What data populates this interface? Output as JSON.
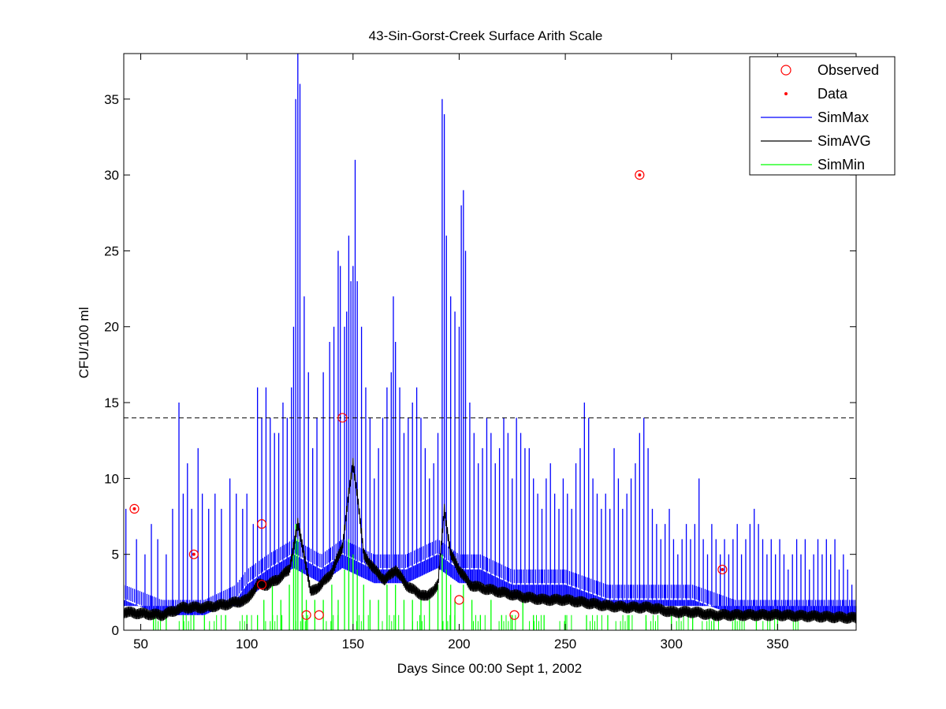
{
  "chart_data": {
    "type": "line",
    "title": "43-Sin-Gorst-Creek Surface Arith Scale",
    "xlabel": "Days Since 00:00 Sept 1, 2002",
    "ylabel": "CFU/100 ml",
    "xlim": [
      42,
      387
    ],
    "ylim": [
      0,
      38
    ],
    "xticks": [
      50,
      100,
      150,
      200,
      250,
      300,
      350
    ],
    "yticks": [
      0,
      5,
      10,
      15,
      20,
      25,
      30,
      35
    ],
    "grid": false,
    "legend_position": "top-right",
    "threshold": {
      "y": 14,
      "style": "dashed",
      "color": "#000000"
    },
    "observed": {
      "name": "Observed",
      "color": "#ff0000",
      "x": [
        47,
        75,
        107,
        107,
        128,
        134,
        145,
        200,
        226,
        285,
        324
      ],
      "y": [
        8,
        5,
        7,
        3,
        1,
        1,
        14,
        2,
        1,
        30,
        4
      ]
    },
    "data_points": {
      "name": "Data",
      "color": "#ff0000",
      "x": [
        47,
        75,
        285,
        324
      ],
      "y": [
        8,
        5,
        30,
        4
      ]
    },
    "series": [
      {
        "name": "SimMax",
        "color": "#0000ff",
        "baseline": [
          [
            42,
            3
          ],
          [
            60,
            2
          ],
          [
            80,
            2
          ],
          [
            95,
            3
          ],
          [
            100,
            4
          ],
          [
            110,
            5
          ],
          [
            122,
            6
          ],
          [
            135,
            5
          ],
          [
            145,
            6
          ],
          [
            160,
            5
          ],
          [
            175,
            5
          ],
          [
            190,
            6
          ],
          [
            200,
            5
          ],
          [
            210,
            5
          ],
          [
            225,
            4
          ],
          [
            250,
            4
          ],
          [
            270,
            3
          ],
          [
            290,
            3
          ],
          [
            310,
            3
          ],
          [
            330,
            2
          ],
          [
            360,
            2
          ],
          [
            387,
            2
          ]
        ],
        "peaks": [
          [
            43,
            8
          ],
          [
            48,
            6
          ],
          [
            52,
            5
          ],
          [
            55,
            7
          ],
          [
            58,
            6
          ],
          [
            62,
            5
          ],
          [
            65,
            8
          ],
          [
            68,
            15
          ],
          [
            70,
            9
          ],
          [
            72,
            11
          ],
          [
            74,
            8
          ],
          [
            77,
            12
          ],
          [
            79,
            9
          ],
          [
            82,
            8
          ],
          [
            85,
            9
          ],
          [
            88,
            8
          ],
          [
            92,
            10
          ],
          [
            95,
            9
          ],
          [
            98,
            8
          ],
          [
            100,
            9
          ],
          [
            103,
            7
          ],
          [
            105,
            16
          ],
          [
            107,
            14
          ],
          [
            109,
            16
          ],
          [
            111,
            14
          ],
          [
            113,
            13
          ],
          [
            115,
            13
          ],
          [
            117,
            15
          ],
          [
            119,
            14
          ],
          [
            121,
            16
          ],
          [
            122,
            20
          ],
          [
            123,
            35
          ],
          [
            124,
            38
          ],
          [
            125,
            36
          ],
          [
            127,
            22
          ],
          [
            129,
            17
          ],
          [
            131,
            12
          ],
          [
            133,
            14
          ],
          [
            136,
            17
          ],
          [
            139,
            19
          ],
          [
            141,
            20
          ],
          [
            143,
            25
          ],
          [
            144,
            24
          ],
          [
            146,
            20
          ],
          [
            147,
            21
          ],
          [
            148,
            26
          ],
          [
            149,
            23
          ],
          [
            150,
            24
          ],
          [
            151,
            31
          ],
          [
            152,
            23
          ],
          [
            154,
            20
          ],
          [
            156,
            16
          ],
          [
            158,
            14
          ],
          [
            160,
            10
          ],
          [
            162,
            12
          ],
          [
            164,
            14
          ],
          [
            166,
            16
          ],
          [
            168,
            17
          ],
          [
            169,
            22
          ],
          [
            170,
            19
          ],
          [
            172,
            16
          ],
          [
            174,
            13
          ],
          [
            176,
            14
          ],
          [
            178,
            15
          ],
          [
            180,
            16
          ],
          [
            182,
            14
          ],
          [
            184,
            12
          ],
          [
            186,
            10
          ],
          [
            188,
            11
          ],
          [
            190,
            13
          ],
          [
            192,
            35
          ],
          [
            193,
            34
          ],
          [
            194,
            26
          ],
          [
            196,
            22
          ],
          [
            198,
            21
          ],
          [
            200,
            20
          ],
          [
            201,
            28
          ],
          [
            202,
            29
          ],
          [
            203,
            25
          ],
          [
            205,
            15
          ],
          [
            207,
            13
          ],
          [
            209,
            11
          ],
          [
            211,
            12
          ],
          [
            213,
            14
          ],
          [
            215,
            13
          ],
          [
            217,
            11
          ],
          [
            219,
            12
          ],
          [
            221,
            14
          ],
          [
            223,
            13
          ],
          [
            225,
            10
          ],
          [
            227,
            14
          ],
          [
            229,
            13
          ],
          [
            231,
            12
          ],
          [
            233,
            12
          ],
          [
            235,
            10
          ],
          [
            237,
            9
          ],
          [
            239,
            8
          ],
          [
            241,
            10
          ],
          [
            243,
            11
          ],
          [
            245,
            9
          ],
          [
            247,
            8
          ],
          [
            249,
            10
          ],
          [
            251,
            9
          ],
          [
            253,
            8
          ],
          [
            255,
            11
          ],
          [
            257,
            12
          ],
          [
            259,
            15
          ],
          [
            261,
            14
          ],
          [
            263,
            10
          ],
          [
            265,
            9
          ],
          [
            267,
            8
          ],
          [
            269,
            9
          ],
          [
            271,
            8
          ],
          [
            273,
            12
          ],
          [
            275,
            10
          ],
          [
            277,
            8
          ],
          [
            279,
            9
          ],
          [
            281,
            10
          ],
          [
            283,
            11
          ],
          [
            285,
            13
          ],
          [
            287,
            14
          ],
          [
            289,
            12
          ],
          [
            291,
            8
          ],
          [
            293,
            7
          ],
          [
            295,
            6
          ],
          [
            297,
            7
          ],
          [
            299,
            8
          ],
          [
            301,
            6
          ],
          [
            303,
            5
          ],
          [
            305,
            6
          ],
          [
            307,
            7
          ],
          [
            309,
            6
          ],
          [
            311,
            7
          ],
          [
            313,
            10
          ],
          [
            315,
            6
          ],
          [
            317,
            5
          ],
          [
            319,
            7
          ],
          [
            321,
            6
          ],
          [
            323,
            5
          ],
          [
            325,
            6
          ],
          [
            327,
            5
          ],
          [
            329,
            6
          ],
          [
            331,
            7
          ],
          [
            333,
            5
          ],
          [
            335,
            6
          ],
          [
            337,
            7
          ],
          [
            339,
            8
          ],
          [
            341,
            7
          ],
          [
            343,
            6
          ],
          [
            345,
            5
          ],
          [
            347,
            6
          ],
          [
            349,
            5
          ],
          [
            351,
            6
          ],
          [
            353,
            5
          ],
          [
            355,
            4
          ],
          [
            357,
            5
          ],
          [
            359,
            6
          ],
          [
            361,
            5
          ],
          [
            363,
            6
          ],
          [
            365,
            4
          ],
          [
            367,
            5
          ],
          [
            369,
            6
          ],
          [
            371,
            5
          ],
          [
            373,
            6
          ],
          [
            375,
            5
          ],
          [
            377,
            6
          ],
          [
            379,
            4
          ],
          [
            381,
            5
          ],
          [
            383,
            4
          ],
          [
            385,
            3
          ]
        ]
      },
      {
        "name": "SimAVG",
        "color": "#000000",
        "baseline": [
          [
            42,
            1.2
          ],
          [
            50,
            1.1
          ],
          [
            60,
            1.0
          ],
          [
            70,
            1.5
          ],
          [
            80,
            1.5
          ],
          [
            90,
            1.7
          ],
          [
            100,
            2.0
          ],
          [
            105,
            3.0
          ],
          [
            110,
            3.0
          ],
          [
            115,
            3.4
          ],
          [
            120,
            4.0
          ],
          [
            124,
            7.0
          ],
          [
            127,
            5.0
          ],
          [
            130,
            2.5
          ],
          [
            135,
            3.0
          ],
          [
            140,
            3.8
          ],
          [
            145,
            5.5
          ],
          [
            148,
            9.0
          ],
          [
            150,
            11.0
          ],
          [
            152,
            9.0
          ],
          [
            155,
            5.0
          ],
          [
            160,
            4.0
          ],
          [
            165,
            3.3
          ],
          [
            170,
            4.0
          ],
          [
            175,
            3.0
          ],
          [
            180,
            2.5
          ],
          [
            185,
            2.2
          ],
          [
            190,
            3.0
          ],
          [
            193,
            8.0
          ],
          [
            196,
            5.0
          ],
          [
            200,
            4.0
          ],
          [
            205,
            3.0
          ],
          [
            210,
            2.8
          ],
          [
            220,
            2.5
          ],
          [
            230,
            2.2
          ],
          [
            240,
            2.0
          ],
          [
            250,
            2.0
          ],
          [
            260,
            1.8
          ],
          [
            270,
            1.6
          ],
          [
            280,
            1.5
          ],
          [
            290,
            1.5
          ],
          [
            300,
            1.2
          ],
          [
            310,
            1.2
          ],
          [
            320,
            1.0
          ],
          [
            330,
            1.0
          ],
          [
            350,
            1.0
          ],
          [
            370,
            0.9
          ],
          [
            387,
            0.8
          ]
        ]
      },
      {
        "name": "SimMin",
        "color": "#00ff00",
        "baseline": [
          [
            42,
            0
          ],
          [
            387,
            0
          ]
        ],
        "peaks": [
          [
            56,
            1
          ],
          [
            62,
            1
          ],
          [
            70,
            1
          ],
          [
            75,
            1
          ],
          [
            80,
            1
          ],
          [
            90,
            1
          ],
          [
            100,
            1
          ],
          [
            105,
            1
          ],
          [
            108,
            2
          ],
          [
            112,
            3
          ],
          [
            116,
            2
          ],
          [
            120,
            3
          ],
          [
            122,
            5
          ],
          [
            123,
            7
          ],
          [
            124,
            6
          ],
          [
            126,
            4
          ],
          [
            128,
            2
          ],
          [
            132,
            2
          ],
          [
            136,
            2
          ],
          [
            140,
            3
          ],
          [
            143,
            2
          ],
          [
            146,
            4
          ],
          [
            148,
            6
          ],
          [
            150,
            5
          ],
          [
            152,
            4
          ],
          [
            155,
            3
          ],
          [
            158,
            2
          ],
          [
            162,
            2
          ],
          [
            166,
            3
          ],
          [
            170,
            3
          ],
          [
            174,
            2
          ],
          [
            178,
            2
          ],
          [
            182,
            2
          ],
          [
            186,
            2
          ],
          [
            190,
            3
          ],
          [
            192,
            5
          ],
          [
            194,
            4
          ],
          [
            196,
            3
          ],
          [
            198,
            2
          ],
          [
            202,
            3
          ],
          [
            206,
            2
          ],
          [
            210,
            1
          ],
          [
            215,
            2
          ],
          [
            220,
            1
          ],
          [
            225,
            1
          ],
          [
            230,
            2
          ],
          [
            235,
            1
          ],
          [
            240,
            1
          ],
          [
            250,
            1
          ],
          [
            260,
            1
          ],
          [
            270,
            1
          ],
          [
            280,
            1
          ],
          [
            288,
            1
          ],
          [
            300,
            1
          ],
          [
            310,
            1
          ],
          [
            320,
            1
          ],
          [
            330,
            1
          ],
          [
            340,
            1
          ],
          [
            350,
            1
          ]
        ]
      }
    ]
  }
}
